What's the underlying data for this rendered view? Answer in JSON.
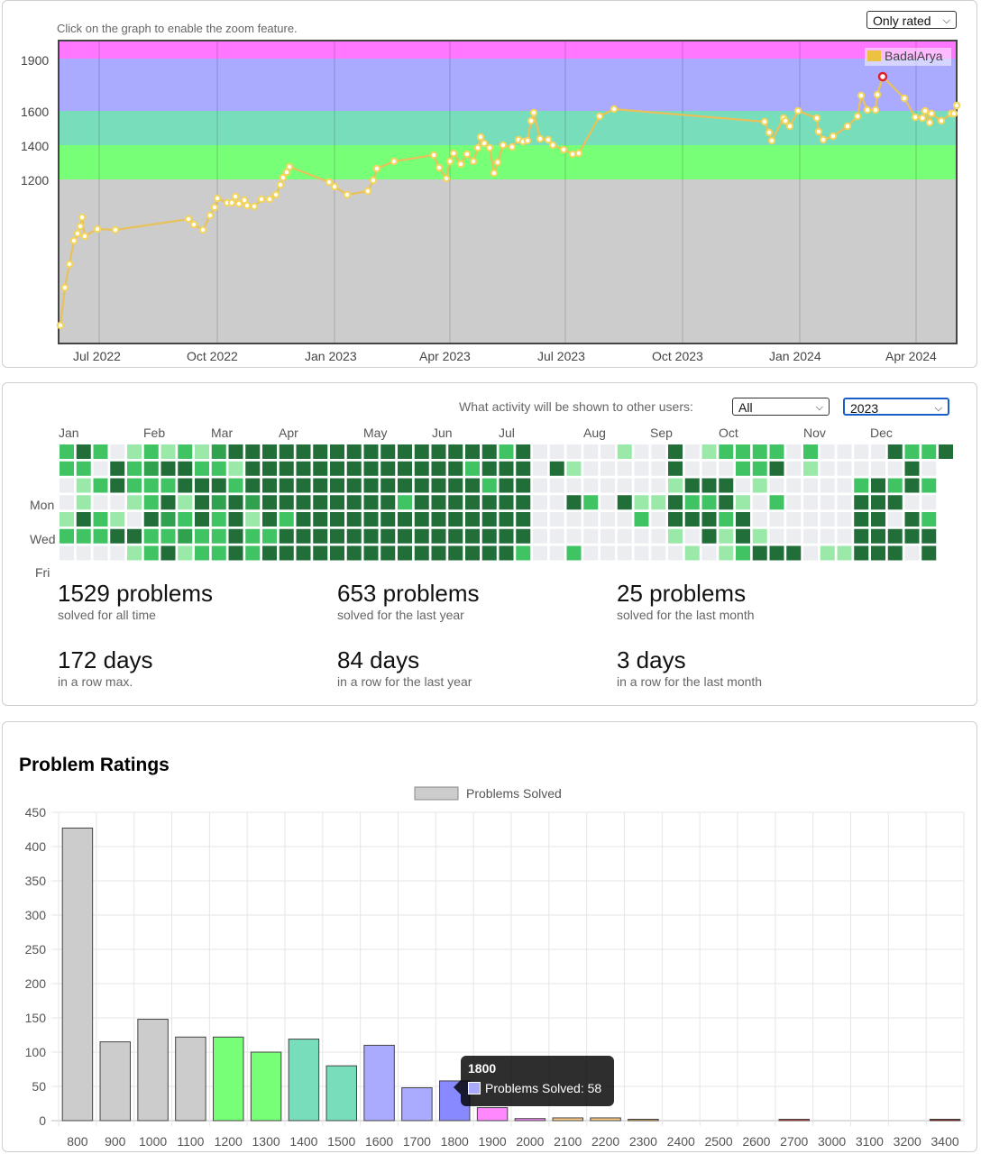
{
  "rating_graph": {
    "hint": "Click on the graph to enable the zoom feature.",
    "filter_select": "Only rated",
    "legend": "BadalArya",
    "y_ticks": [
      "1900",
      "1600",
      "1400",
      "1200"
    ],
    "x_ticks": [
      "Jul 2022",
      "Oct 2022",
      "Jan 2023",
      "Apr 2023",
      "Jul 2023",
      "Oct 2023",
      "Jan 2024",
      "Apr 2024"
    ],
    "colors": {
      "line": "#e8c15a",
      "point": "#f3d55b",
      "highlight": "#e02030"
    }
  },
  "activity": {
    "question": "What activity will be shown to other users:",
    "visibility_select": "All",
    "year_select": "2023",
    "months": [
      "Jan",
      "Feb",
      "Mar",
      "Apr",
      "May",
      "Jun",
      "Jul",
      "Aug",
      "Sep",
      "Oct",
      "Nov",
      "Dec"
    ],
    "weekday_labels": [
      "Mon",
      "Wed",
      "Fri"
    ],
    "stats": [
      {
        "value": "1529 problems",
        "label": "solved for all time"
      },
      {
        "value": "653 problems",
        "label": "solved for the last year"
      },
      {
        "value": "25 problems",
        "label": "solved for the last month"
      },
      {
        "value": "172 days",
        "label": "in a row max."
      },
      {
        "value": "84 days",
        "label": "in a row for the last year"
      },
      {
        "value": "3 days",
        "label": "in a row for the last month"
      }
    ],
    "heat_colors": [
      "#ebedf0",
      "#9be9a8",
      "#40c463",
      "#30a14e",
      "#216e39"
    ]
  },
  "problem_ratings": {
    "title": "Problem Ratings",
    "tooltip": {
      "title": "1800",
      "text": "Problems Solved: 58"
    },
    "chart_data": {
      "type": "bar",
      "legend": "Problems Solved",
      "categories": [
        "800",
        "900",
        "1000",
        "1100",
        "1200",
        "1300",
        "1400",
        "1500",
        "1600",
        "1700",
        "1800",
        "1900",
        "2000",
        "2100",
        "2200",
        "2300",
        "2400",
        "2500",
        "2600",
        "2700",
        "3000",
        "3100",
        "3200",
        "3400"
      ],
      "values": [
        427,
        115,
        148,
        122,
        122,
        100,
        119,
        80,
        110,
        48,
        58,
        19,
        3,
        4,
        4,
        2,
        0,
        0,
        0,
        2,
        0,
        0,
        0,
        2
      ],
      "colors": [
        "#cccccc",
        "#cccccc",
        "#cccccc",
        "#cccccc",
        "#77ff77",
        "#77ff77",
        "#77ddbb",
        "#77ddbb",
        "#aaaaff",
        "#aaaaff",
        "#aaaaff",
        "#ff88ff",
        "#ff88ff",
        "#ffcc88",
        "#ffcc88",
        "#ffbb55",
        "#ff7777",
        "#ff7777",
        "#ff3333",
        "#ff3333",
        "#aa0000",
        "#aa0000",
        "#aa0000",
        "#aa0000"
      ],
      "y_ticks": [
        450,
        400,
        350,
        300,
        250,
        200,
        150,
        100,
        50,
        0
      ],
      "ylim": [
        0,
        450
      ]
    }
  }
}
